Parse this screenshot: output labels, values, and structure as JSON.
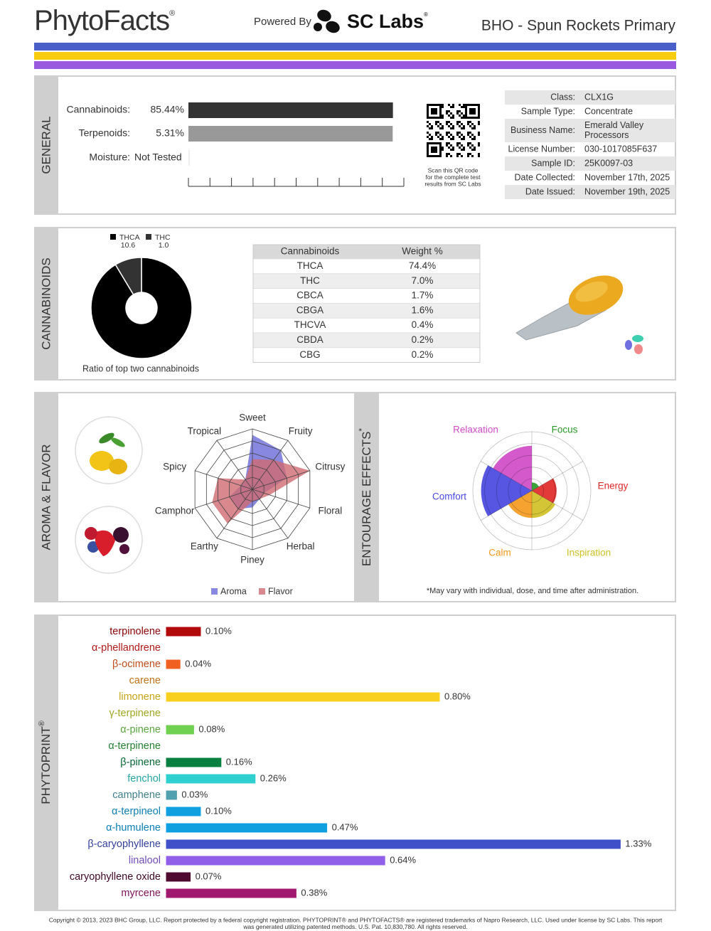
{
  "header": {
    "brand": "PhytoFacts",
    "brand_mark": "®",
    "powered_by": "Powered By",
    "lab": "SC Labs",
    "lab_mark": "®",
    "title": "BHO - Spun Rockets Primary"
  },
  "general": {
    "section_label": "GENERAL",
    "bars": [
      {
        "label": "Cannabinoids:",
        "value": 85.44,
        "value_label": "85.44%",
        "xlim": [
          0,
          90
        ],
        "color": "#333333"
      },
      {
        "label": "Terpenoids:",
        "value": 5.31,
        "value_label": "5.31%",
        "xlim": [
          0,
          5.6
        ],
        "color": "#999999"
      }
    ],
    "moisture": {
      "label": "Moisture:",
      "value": "Not Tested"
    },
    "qr_caption": [
      "Scan this QR code",
      "for the complete test",
      "results from SC Labs"
    ],
    "info": [
      {
        "label": "Class:",
        "value": "CLX1G"
      },
      {
        "label": "Sample Type:",
        "value": "Concentrate"
      },
      {
        "label": "Business Name:",
        "value": [
          "Emerald Valley",
          "Processors"
        ]
      },
      {
        "label": "License Number:",
        "value": "030-1017085F637"
      },
      {
        "label": "Sample ID:",
        "value": "25K0097-03"
      },
      {
        "label": "Date Collected:",
        "value": "November 17th, 2025"
      },
      {
        "label": "Date Issued:",
        "value": "November 19th, 2025"
      }
    ]
  },
  "cannabinoids": {
    "section_label": "CANNABINOIDS",
    "chart_data": {
      "type": "pie",
      "categories": [
        "THCA",
        "THC"
      ],
      "values": [
        10.6,
        1.0
      ],
      "value_labels": [
        "10.6",
        "1.0"
      ],
      "colors": [
        "#000000",
        "#333333"
      ],
      "caption": "Ratio of top two cannabinoids"
    },
    "table": {
      "header": [
        "Cannabinoids",
        "Weight %"
      ],
      "rows": [
        [
          "THCA",
          "74.4%"
        ],
        [
          "THC",
          "7.0%"
        ],
        [
          "CBCA",
          "1.7%"
        ],
        [
          "CBGA",
          "1.6%"
        ],
        [
          "THCVA",
          "0.4%"
        ],
        [
          "CBDA",
          "0.2%"
        ],
        [
          "CBG",
          "0.2%"
        ]
      ]
    }
  },
  "aroma_flavor": {
    "section_label": "AROMA & FLAVOR",
    "chart_data": {
      "type": "radar",
      "categories": [
        "Sweet",
        "Fruity",
        "Citrusy",
        "Floral",
        "Herbal",
        "Piney",
        "Earthy",
        "Camphor",
        "Spicy",
        "Tropical"
      ],
      "rlim": [
        0,
        5
      ],
      "rticks": [
        1,
        2,
        3,
        4,
        5
      ],
      "series": [
        {
          "name": "Aroma",
          "color": "#6a6ad8",
          "values": [
            4.5,
            4,
            3,
            1,
            1,
            1.5,
            2,
            2,
            1,
            1
          ]
        },
        {
          "name": "Flavor",
          "color": "#d06a72",
          "values": [
            2.5,
            3,
            5,
            1.5,
            1,
            1,
            3.5,
            3.5,
            3,
            1
          ]
        }
      ]
    }
  },
  "entourage": {
    "section_label": "ENTOURAGE EFFECTS",
    "section_mark": "*",
    "chart_data": {
      "type": "polar-area",
      "categories": [
        "Focus",
        "Energy",
        "Inspiration",
        "Calm",
        "Comfort",
        "Relaxation"
      ],
      "values": [
        0.7,
        2.1,
        2.3,
        2.3,
        4.3,
        3.8
      ],
      "colors": [
        "#2a9a2a",
        "#e02828",
        "#cfc024",
        "#f49a20",
        "#4848e0",
        "#d04cc8"
      ],
      "rlim": [
        0,
        5
      ],
      "rticks": [
        1,
        2,
        3,
        4,
        5
      ]
    },
    "footnote": "*May vary with individual, dose, and time after administration."
  },
  "phytoprint": {
    "section_label": "PHYTOPRINT",
    "section_mark": "®",
    "chart_data": {
      "type": "bar",
      "orientation": "horizontal",
      "categories": [
        "terpinolene",
        "α-phellandrene",
        "β-ocimene",
        "carene",
        "limonene",
        "γ-terpinene",
        "α-pinene",
        "α-terpinene",
        "β-pinene",
        "fenchol",
        "camphene",
        "α-terpineol",
        "α-humulene",
        "β-caryophyllene",
        "linalool",
        "caryophyllene oxide",
        "myrcene"
      ],
      "values": [
        0.1,
        0,
        0.04,
        0,
        0.8,
        0,
        0.08,
        0,
        0.16,
        0.26,
        0.03,
        0.1,
        0.47,
        1.33,
        0.64,
        0.07,
        0.38
      ],
      "value_labels": [
        "0.10%",
        null,
        "0.04%",
        null,
        "0.80%",
        null,
        "0.08%",
        null,
        "0.16%",
        "0.26%",
        "0.03%",
        "0.10%",
        "0.47%",
        "1.33%",
        "0.64%",
        "0.07%",
        "0.38%"
      ],
      "colors": [
        "#b00a0a",
        "#e02020",
        "#f06020",
        "#f09020",
        "#f8d020",
        "#c8d030",
        "#70d050",
        "#30a040",
        "#0a8040",
        "#30d0d0",
        "#50a0b0",
        "#10a0e0",
        "#10a0e0",
        "#4050c8",
        "#9060e8",
        "#500a30",
        "#a01a70"
      ],
      "xlim": [
        0,
        1.4
      ]
    }
  },
  "footer": [
    "Copyright © 2013, 2023 BHC Group, LLC. Report protected by a federal copyright registration. PHYTOPRINT® and PHYTOFACTS® are registered trademarks of Napro Research, LLC. Used under license by SC Labs. This report",
    "was generated utilizing patented methods. U.S. Pat. 10,830,780. All rights reserved."
  ]
}
